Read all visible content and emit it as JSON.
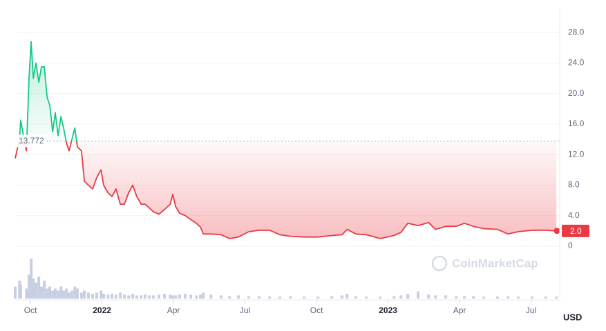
{
  "chart_data": {
    "type": "line",
    "yaxis_unit": "USD",
    "watermark": "CoinMarketCap",
    "up_color": "#16c784",
    "down_color": "#ea3943",
    "volume_color": "#c9cfe3",
    "baseline": 13.772,
    "last_price": {
      "value": 2,
      "label": "2.0"
    },
    "grid": true,
    "xlim": [
      0.36,
      23.2
    ],
    "xticks": [
      {
        "value": 1,
        "label": "Oct"
      },
      {
        "value": 4,
        "label": "2022"
      },
      {
        "value": 7,
        "label": "Apr"
      },
      {
        "value": 10,
        "label": "Jul"
      },
      {
        "value": 13,
        "label": "Oct"
      },
      {
        "value": 16,
        "label": "2023"
      },
      {
        "value": 19,
        "label": "Apr"
      },
      {
        "value": 22,
        "label": "Jul"
      }
    ],
    "ylim": [
      0,
      30
    ],
    "yticks": [
      0,
      {
        "value": 4,
        "label": "4.0"
      },
      {
        "value": 8,
        "label": "8.0"
      },
      {
        "value": 12,
        "label": "12.0"
      },
      {
        "value": 16,
        "label": "16.0"
      },
      {
        "value": 20,
        "label": "20.0"
      },
      {
        "value": 24,
        "label": "24.0"
      },
      {
        "value": 28,
        "label": "28.0"
      }
    ],
    "x": [
      0.36,
      0.54,
      0.59,
      0.83,
      0.94,
      1.03,
      1.12,
      1.23,
      1.35,
      1.46,
      1.58,
      1.7,
      1.81,
      1.93,
      2.04,
      2.16,
      2.28,
      2.39,
      2.51,
      2.62,
      2.74,
      2.86,
      2.97,
      3.14,
      3.26,
      3.43,
      3.61,
      3.78,
      3.96,
      4.07,
      4.25,
      4.42,
      4.59,
      4.77,
      4.94,
      5.12,
      5.29,
      5.46,
      5.64,
      5.81,
      5.99,
      6.16,
      6.39,
      6.62,
      6.86,
      6.97,
      7.09,
      7.26,
      7.49,
      7.72,
      7.96,
      8.13,
      8.25,
      8.57,
      9.0,
      9.35,
      9.72,
      10.16,
      10.59,
      11.03,
      11.46,
      11.9,
      12.48,
      13.06,
      13.64,
      14.07,
      14.28,
      14.65,
      15.09,
      15.67,
      16.25,
      16.54,
      16.83,
      17.26,
      17.7,
      17.99,
      18.42,
      18.86,
      19.2,
      19.58,
      20.01,
      20.59,
      21.03,
      21.46,
      22.04,
      22.62,
      23.06
    ],
    "series": [
      {
        "name": "Price",
        "values": [
          11.5,
          14,
          16.5,
          12.5,
          22,
          26.8,
          22,
          24,
          21.5,
          23.5,
          23.5,
          19.5,
          18.5,
          15,
          17.5,
          14.5,
          17,
          15.5,
          13.5,
          12.5,
          14,
          15.5,
          13,
          12.5,
          8.5,
          8,
          7.5,
          9,
          10,
          8,
          7,
          6.5,
          7.5,
          5.5,
          5.5,
          7,
          8,
          6.5,
          5.5,
          5.5,
          5,
          4.5,
          4.2,
          4.8,
          5.5,
          6.8,
          5.2,
          4.3,
          4,
          3.5,
          3,
          2.5,
          1.6,
          1.6,
          1.5,
          1,
          1.2,
          1.9,
          2.1,
          2.1,
          1.5,
          1.3,
          1.2,
          1.2,
          1.4,
          1.5,
          2.2,
          1.6,
          1.5,
          1,
          1.4,
          1.8,
          3,
          2.7,
          3.1,
          2.2,
          2.6,
          2.6,
          3,
          2.6,
          2.3,
          2.2,
          1.6,
          1.9,
          2.1,
          2.1,
          2
        ]
      }
    ],
    "volume": {
      "ylim": [
        0,
        100
      ],
      "values": [
        30,
        45,
        35,
        25,
        60,
        100,
        50,
        40,
        55,
        30,
        45,
        25,
        30,
        20,
        25,
        20,
        30,
        20,
        25,
        15,
        20,
        30,
        25,
        15,
        20,
        15,
        12,
        15,
        20,
        12,
        10,
        12,
        10,
        15,
        10,
        8,
        12,
        8,
        8,
        10,
        8,
        8,
        10,
        12,
        10,
        8,
        8,
        10,
        12,
        10,
        8,
        10,
        15,
        10,
        8,
        6,
        8,
        6,
        6,
        5,
        5,
        6,
        5,
        5,
        6,
        8,
        12,
        6,
        5,
        5,
        6,
        8,
        12,
        18,
        10,
        8,
        8,
        6,
        6,
        6,
        5,
        5,
        6,
        5,
        5,
        5,
        5
      ]
    }
  }
}
